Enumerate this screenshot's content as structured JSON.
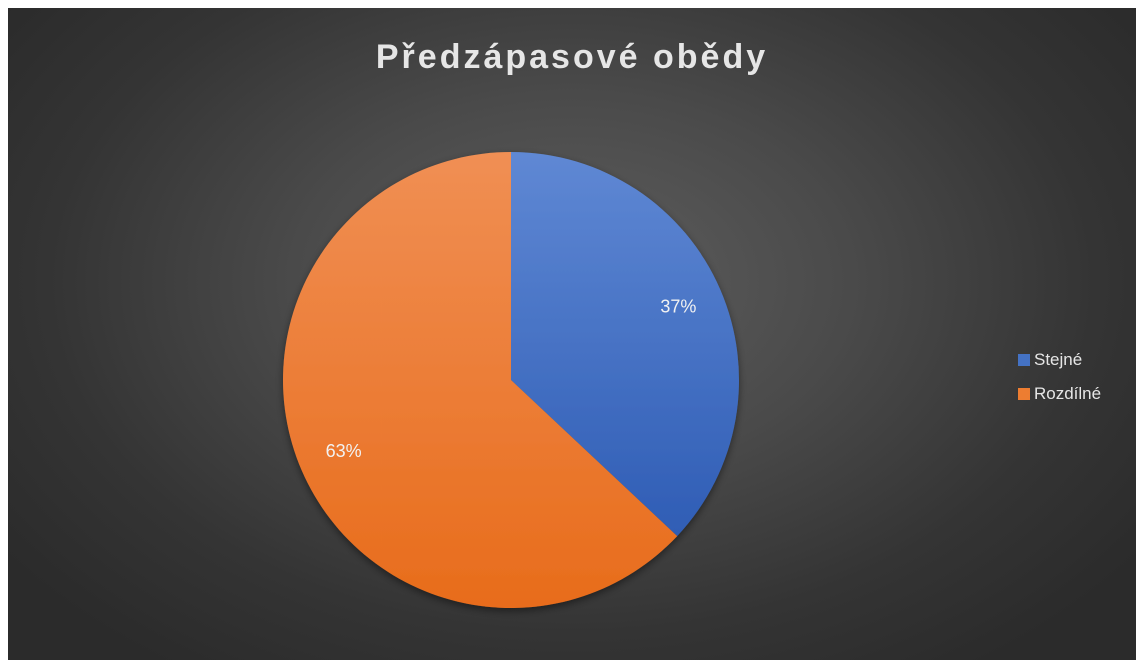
{
  "chart_data": {
    "type": "pie",
    "title": "Předzápasové obědy",
    "categories": [
      "Stejné",
      "Rozdílné"
    ],
    "values": [
      37,
      63
    ],
    "labels": [
      "37%",
      "63%"
    ],
    "colors": [
      "#4472C4",
      "#ED7D31"
    ],
    "legend_position": "right",
    "start_angle": "top, clockwise"
  }
}
